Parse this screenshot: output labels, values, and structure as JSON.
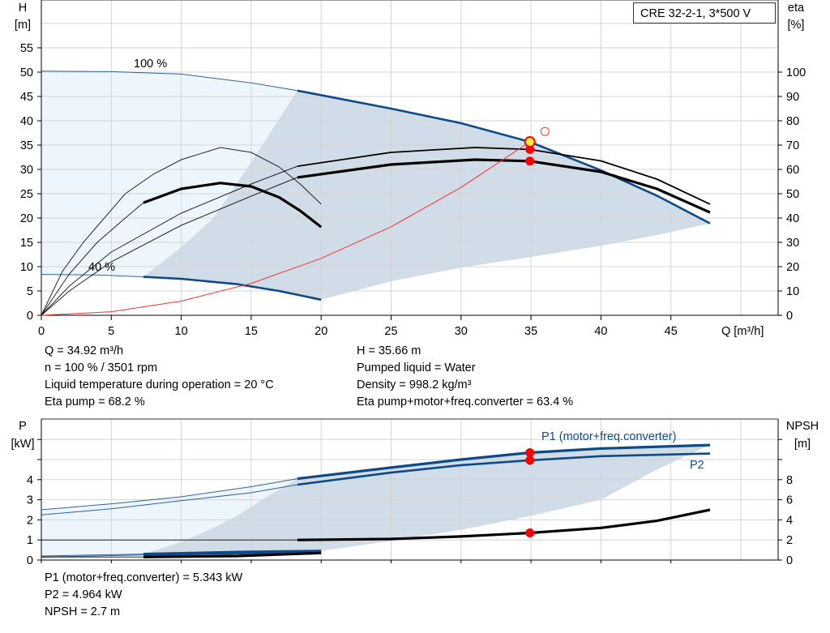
{
  "legend_title": "CRE 32-2-1, 3*500 V",
  "colors": {
    "curve": "#0e4a86",
    "light_area": "#eef6fd",
    "dark_area": "#d0dce7",
    "system": "#ff3030",
    "point": "#ff0000",
    "point_fill_h": "#ffee33",
    "grid": "#d4d4d4"
  },
  "chart_data": [
    {
      "type": "line",
      "ylabel": "H",
      "yunit": "[m]",
      "y2label": "eta",
      "y2unit": "[%]",
      "xlabel": "Q [m³/h]",
      "xlim": [
        0,
        52
      ],
      "ylim": [
        0,
        65
      ],
      "y2lim": [
        0,
        130
      ],
      "grid": true,
      "xticks": [
        "0",
        "5",
        "10",
        "15",
        "20",
        "25",
        "30",
        "35",
        "40",
        "45"
      ],
      "yticks": [
        "0",
        "5",
        "10",
        "15",
        "20",
        "25",
        "30",
        "35",
        "40",
        "45",
        "50",
        "55"
      ],
      "y2ticks": [
        "0",
        "10",
        "20",
        "30",
        "40",
        "50",
        "60",
        "70",
        "80",
        "90",
        "100"
      ],
      "annotations": [
        "100 %",
        "40 %"
      ],
      "series": [
        {
          "name": "H 100 %",
          "axis": "H",
          "thin_until": 18.3,
          "points": [
            [
              0,
              50.2
            ],
            [
              5,
              50.1
            ],
            [
              10,
              49.6
            ],
            [
              15,
              47.8
            ],
            [
              18.3,
              46.2
            ],
            [
              25,
              42.5
            ],
            [
              30,
              39.5
            ],
            [
              34.92,
              35.66
            ],
            [
              40,
              29.8
            ],
            [
              44,
              24.6
            ],
            [
              47.8,
              18.9
            ]
          ]
        },
        {
          "name": "H 40 %",
          "axis": "H",
          "thin_until": 7.3,
          "points": [
            [
              0,
              8.4
            ],
            [
              4,
              8.3
            ],
            [
              7.3,
              7.9
            ],
            [
              10,
              7.5
            ],
            [
              14,
              6.4
            ],
            [
              17,
              5
            ],
            [
              20,
              3.2
            ]
          ]
        },
        {
          "name": "eta pump 100 %",
          "axis": "eta",
          "thin_until": 18.3,
          "points": [
            [
              0,
              0
            ],
            [
              2,
              12
            ],
            [
              5,
              26
            ],
            [
              10,
              42
            ],
            [
              15,
              54
            ],
            [
              18.3,
              61.3
            ],
            [
              25,
              67
            ],
            [
              31,
              69
            ],
            [
              34.92,
              68.2
            ],
            [
              40,
              63.5
            ],
            [
              44,
              56
            ],
            [
              47.8,
              45.7
            ]
          ]
        },
        {
          "name": "eta total 100 %",
          "axis": "eta",
          "thin_until": 18.3,
          "thick": true,
          "points": [
            [
              0,
              0
            ],
            [
              2,
              10
            ],
            [
              5,
              22
            ],
            [
              10,
              37
            ],
            [
              15,
              49
            ],
            [
              18.3,
              56.7
            ],
            [
              25,
              62
            ],
            [
              31,
              64
            ],
            [
              34.92,
              63.4
            ],
            [
              40,
              59
            ],
            [
              44,
              52
            ],
            [
              47.8,
              42.3
            ]
          ]
        },
        {
          "name": "eta pump 40 %",
          "axis": "eta",
          "thin_until": 20,
          "points": [
            [
              0,
              0
            ],
            [
              1.5,
              18
            ],
            [
              3,
              30
            ],
            [
              6,
              50
            ],
            [
              8,
              58
            ],
            [
              10,
              64
            ],
            [
              12.8,
              69
            ],
            [
              15,
              67
            ],
            [
              17,
              61
            ],
            [
              18.5,
              54
            ],
            [
              20,
              45.7
            ]
          ]
        },
        {
          "name": "eta total 40 %",
          "axis": "eta",
          "thin_until": 7.3,
          "thick": true,
          "points": [
            [
              0,
              0
            ],
            [
              2,
              17
            ],
            [
              4,
              30
            ],
            [
              6,
              40
            ],
            [
              7.3,
              46.3
            ],
            [
              10,
              52
            ],
            [
              12.8,
              54.4
            ],
            [
              15,
              53
            ],
            [
              17,
              48.5
            ],
            [
              18.5,
              43
            ],
            [
              20,
              36.3
            ]
          ]
        },
        {
          "name": "system curve",
          "axis": "H",
          "system": true,
          "points": [
            [
              0,
              0
            ],
            [
              5,
              0.73
            ],
            [
              10,
              2.92
            ],
            [
              15,
              6.57
            ],
            [
              20,
              11.7
            ],
            [
              25,
              18.2
            ],
            [
              30,
              26.3
            ],
            [
              34.92,
              35.66
            ]
          ]
        }
      ],
      "duty_points": {
        "Q": 34.92,
        "H": 35.66,
        "eta_pump": 68.2,
        "eta_total": 63.4,
        "system_marker": [
          36,
          37.8
        ]
      },
      "light_area": [
        [
          0,
          50.2
        ],
        [
          5,
          50.1
        ],
        [
          10,
          49.6
        ],
        [
          15,
          47.8
        ],
        [
          18.3,
          46.2
        ],
        [
          15,
          31.5
        ],
        [
          12.3,
          20
        ],
        [
          10,
          14
        ],
        [
          7.3,
          7.9
        ],
        [
          4,
          8.3
        ],
        [
          0,
          8.4
        ]
      ],
      "dark_area": [
        [
          18.3,
          46.2
        ],
        [
          25,
          42.5
        ],
        [
          30,
          39.5
        ],
        [
          34.92,
          35.66
        ],
        [
          40,
          29.8
        ],
        [
          44,
          24.6
        ],
        [
          47.8,
          18.9
        ],
        [
          44,
          16.5
        ],
        [
          40,
          14.3
        ],
        [
          35,
          12
        ],
        [
          30,
          9.8
        ],
        [
          25,
          7
        ],
        [
          20,
          3.2
        ],
        [
          17,
          5
        ],
        [
          14,
          6.4
        ],
        [
          10,
          7.5
        ],
        [
          7.3,
          7.9
        ],
        [
          10,
          14
        ],
        [
          12.3,
          20
        ],
        [
          15,
          31.5
        ]
      ]
    },
    {
      "type": "line",
      "ylabel": "P",
      "yunit": "[kW]",
      "y2label": "NPSH",
      "y2unit": "[m]",
      "xlim": [
        0,
        52
      ],
      "ylim": [
        0,
        7
      ],
      "grid": true,
      "yticks": [
        "0",
        "1",
        "2",
        "3",
        "4"
      ],
      "y2ticks": [
        "0",
        "2",
        "4",
        "6",
        "8"
      ],
      "annotations": [
        "P1 (motor+freq.converter)",
        "P2"
      ],
      "series": [
        {
          "name": "P1 100 %",
          "axis": "P",
          "thin_until": 18.3,
          "thick": true,
          "points": [
            [
              0,
              2.5
            ],
            [
              5,
              2.8
            ],
            [
              10,
              3.15
            ],
            [
              15,
              3.65
            ],
            [
              18.3,
              4.05
            ],
            [
              25,
              4.6
            ],
            [
              30,
              5.0
            ],
            [
              34.92,
              5.343
            ],
            [
              40,
              5.55
            ],
            [
              47.8,
              5.72
            ]
          ]
        },
        {
          "name": "P2 100 %",
          "axis": "P",
          "thin_until": 18.3,
          "points": [
            [
              0,
              2.25
            ],
            [
              5,
              2.55
            ],
            [
              10,
              2.95
            ],
            [
              15,
              3.35
            ],
            [
              18.3,
              3.75
            ],
            [
              25,
              4.35
            ],
            [
              30,
              4.72
            ],
            [
              34.92,
              4.964
            ],
            [
              40,
              5.17
            ],
            [
              47.8,
              5.3
            ]
          ]
        },
        {
          "name": "P1 40 %",
          "axis": "P",
          "thin_until": 7.3,
          "thick": true,
          "points": [
            [
              0,
              0.2
            ],
            [
              7.3,
              0.3
            ],
            [
              14,
              0.4
            ],
            [
              20,
              0.45
            ]
          ]
        },
        {
          "name": "P2 40 %",
          "axis": "P",
          "thin_until": 7.3,
          "points": [
            [
              0,
              0.15
            ],
            [
              7.3,
              0.25
            ],
            [
              14,
              0.33
            ],
            [
              20,
              0.4
            ]
          ]
        },
        {
          "name": "NPSH 100 %",
          "axis": "NPSH",
          "thin_until": 18.3,
          "thick": true,
          "black": true,
          "points": [
            [
              0,
              2
            ],
            [
              10,
              2
            ],
            [
              18.3,
              2
            ],
            [
              25,
              2.1
            ],
            [
              30,
              2.35
            ],
            [
              34.92,
              2.7
            ],
            [
              40,
              3.2
            ],
            [
              44,
              3.9
            ],
            [
              47.8,
              5
            ]
          ]
        },
        {
          "name": "NPSH 40 %",
          "axis": "NPSH",
          "thin_until": 7.3,
          "thick": true,
          "black": true,
          "points": [
            [
              0,
              0.3
            ],
            [
              7.3,
              0.3
            ],
            [
              14,
              0.4
            ],
            [
              20,
              0.7
            ]
          ]
        }
      ],
      "duty_points": {
        "Q": 34.92,
        "P1": 5.343,
        "P2": 4.964,
        "NPSH": 2.7
      },
      "light_area": [
        [
          0,
          2.5
        ],
        [
          5,
          2.8
        ],
        [
          10,
          3.15
        ],
        [
          15,
          3.65
        ],
        [
          18.3,
          4.05
        ],
        [
          16,
          3.1
        ],
        [
          14,
          2.2
        ],
        [
          12,
          1.5
        ],
        [
          10,
          0.9
        ],
        [
          7.3,
          0.3
        ],
        [
          0,
          0.2
        ]
      ],
      "dark_area": [
        [
          18.3,
          4.05
        ],
        [
          25,
          4.6
        ],
        [
          30,
          5.0
        ],
        [
          34.92,
          5.343
        ],
        [
          40,
          5.55
        ],
        [
          47.8,
          5.72
        ],
        [
          44,
          4.5
        ],
        [
          40,
          3.0
        ],
        [
          35,
          2.2
        ],
        [
          30,
          1.5
        ],
        [
          25,
          0.95
        ],
        [
          20,
          0.45
        ],
        [
          14,
          0.4
        ],
        [
          7.3,
          0.3
        ],
        [
          10,
          0.9
        ],
        [
          12,
          1.5
        ],
        [
          14,
          2.2
        ],
        [
          16,
          3.1
        ]
      ]
    }
  ],
  "info_top_left": [
    "Q = 34.92 m³/h",
    "n = 100 % / 3501 rpm",
    "Liquid temperature during operation = 20 °C",
    "Eta pump = 68.2 %"
  ],
  "info_top_right": [
    "H = 35.66 m",
    "Pumped liquid = Water",
    "Density = 998.2 kg/m³",
    "Eta pump+motor+freq.converter = 63.4 %"
  ],
  "info_bottom": [
    "P1 (motor+freq.converter) = 5.343 kW",
    "P2 = 4.964 kW",
    "NPSH = 2.7 m"
  ]
}
